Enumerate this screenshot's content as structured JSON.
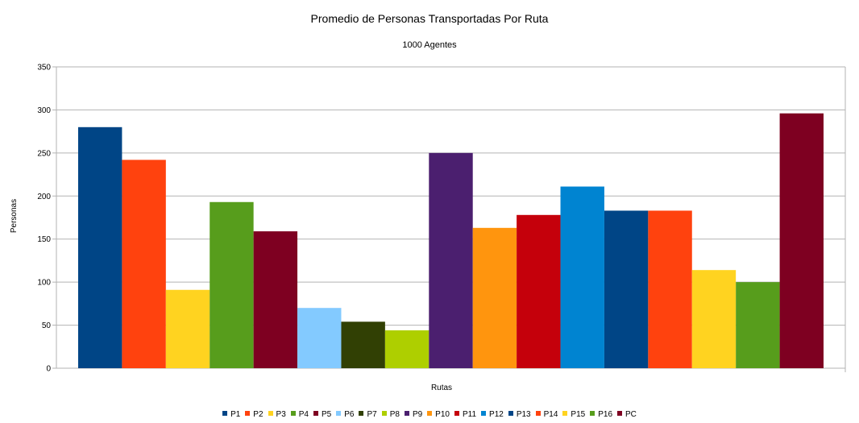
{
  "chart_data": {
    "type": "bar",
    "title": "Promedio de Personas Transportadas Por Ruta",
    "subtitle": "1000 Agentes",
    "xlabel": "Rutas",
    "ylabel": "Personas",
    "ylim": [
      0,
      350
    ],
    "yticks": [
      0,
      50,
      100,
      150,
      200,
      250,
      300,
      350
    ],
    "grid": true,
    "legend_position": "bottom",
    "series": [
      {
        "name": "P1",
        "value": 280,
        "color": "#004586"
      },
      {
        "name": "P2",
        "value": 242,
        "color": "#ff420e"
      },
      {
        "name": "P3",
        "value": 91,
        "color": "#ffd320"
      },
      {
        "name": "P4",
        "value": 193,
        "color": "#579d1c"
      },
      {
        "name": "P5",
        "value": 159,
        "color": "#7e0021"
      },
      {
        "name": "P6",
        "value": 70,
        "color": "#83caff"
      },
      {
        "name": "P7",
        "value": 54,
        "color": "#314004"
      },
      {
        "name": "P8",
        "value": 44,
        "color": "#aecf00"
      },
      {
        "name": "P9",
        "value": 250,
        "color": "#4b1f6f"
      },
      {
        "name": "P10",
        "value": 163,
        "color": "#ff950e"
      },
      {
        "name": "P11",
        "value": 178,
        "color": "#c5000b"
      },
      {
        "name": "P12",
        "value": 211,
        "color": "#0084d1"
      },
      {
        "name": "P13",
        "value": 183,
        "color": "#004586"
      },
      {
        "name": "P14",
        "value": 183,
        "color": "#ff420e"
      },
      {
        "name": "P15",
        "value": 114,
        "color": "#ffd320"
      },
      {
        "name": "P16",
        "value": 100,
        "color": "#579d1c"
      },
      {
        "name": "PC",
        "value": 296,
        "color": "#7e0021"
      }
    ]
  }
}
